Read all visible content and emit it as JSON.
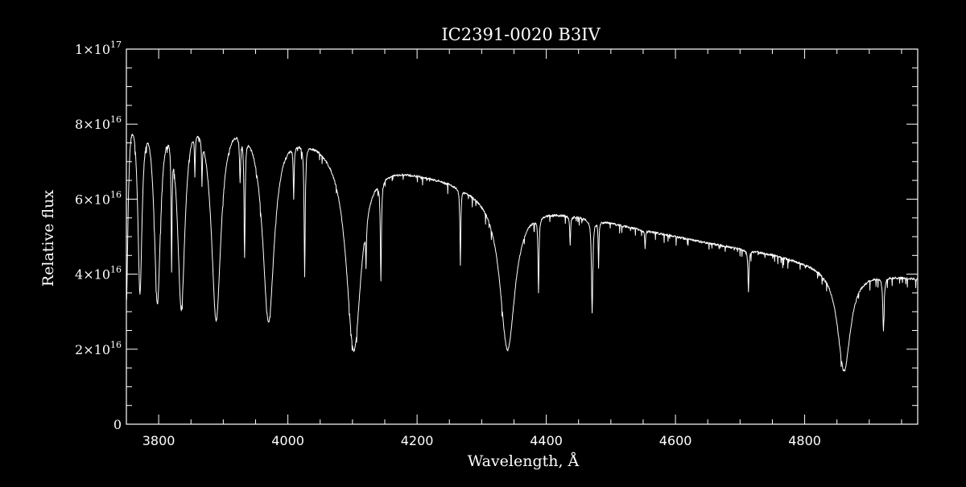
{
  "chart_data": {
    "type": "line",
    "title": "IC2391-0020   B3IV",
    "xlabel": "Wavelength, Å",
    "ylabel": "Relative flux",
    "xlim": [
      3750,
      4975
    ],
    "ylim": [
      0,
      1e+17
    ],
    "x_ticks": [
      3800,
      4000,
      4200,
      4400,
      4600,
      4800
    ],
    "x_tick_labels": [
      "3800",
      "4000",
      "4200",
      "4400",
      "4600",
      "4800"
    ],
    "y_ticks": [
      0,
      2e+16,
      4e+16,
      6e+16,
      8e+16,
      1e+17
    ],
    "y_tick_labels": [
      {
        "mantissa": "0",
        "exponent": ""
      },
      {
        "mantissa": "2×10",
        "exponent": "16"
      },
      {
        "mantissa": "4×10",
        "exponent": "16"
      },
      {
        "mantissa": "6×10",
        "exponent": "16"
      },
      {
        "mantissa": "8×10",
        "exponent": "16"
      },
      {
        "mantissa": "1×10",
        "exponent": "17"
      }
    ],
    "colors": {
      "background": "#000000",
      "foreground": "#ffffff"
    },
    "series": [
      {
        "continuum": [
          [
            3750,
            9e+16
          ],
          [
            3850,
            8.8e+16
          ],
          [
            3950,
            8.3e+16
          ],
          [
            4050,
            7.7e+16
          ],
          [
            4150,
            7e+16
          ],
          [
            4250,
            6.55e+16
          ],
          [
            4350,
            5.95e+16
          ],
          [
            4450,
            5.6e+16
          ],
          [
            4550,
            5.2e+16
          ],
          [
            4650,
            4.85e+16
          ],
          [
            4750,
            4.55e+16
          ],
          [
            4850,
            4.15e+16
          ],
          [
            4975,
            3.9e+16
          ]
        ],
        "lines": [
          {
            "center": 3750,
            "depth": 5.4e+16,
            "width": 3
          },
          {
            "center": 3771,
            "depth": 5e+16,
            "width": 4
          },
          {
            "center": 3798,
            "depth": 5.3e+16,
            "width": 6
          },
          {
            "center": 3820,
            "depth": 3.3e+16,
            "width": 0.8
          },
          {
            "center": 3835,
            "depth": 5.4e+16,
            "width": 7
          },
          {
            "center": 3856,
            "depth": 1.1e+16,
            "width": 0.7
          },
          {
            "center": 3867,
            "depth": 1.2e+16,
            "width": 0.7
          },
          {
            "center": 3889,
            "depth": 5.6e+16,
            "width": 9
          },
          {
            "center": 3926,
            "depth": 1.2e+16,
            "width": 1.0
          },
          {
            "center": 3933,
            "depth": 3.2e+16,
            "width": 1.0
          },
          {
            "center": 3970,
            "depth": 5.3e+16,
            "width": 11
          },
          {
            "center": 4009,
            "depth": 1.4e+16,
            "width": 0.8
          },
          {
            "center": 4026,
            "depth": 3.5e+16,
            "width": 1.0
          },
          {
            "center": 4102,
            "depth": 5.3e+16,
            "width": 14
          },
          {
            "center": 4121,
            "depth": 1e+16,
            "width": 0.8
          },
          {
            "center": 4144,
            "depth": 2.6e+16,
            "width": 1.0
          },
          {
            "center": 4267,
            "depth": 2e+16,
            "width": 0.8
          },
          {
            "center": 4340,
            "depth": 4e+16,
            "width": 14
          },
          {
            "center": 4388,
            "depth": 2e+16,
            "width": 0.9
          },
          {
            "center": 4437,
            "depth": 8000000000000000.0,
            "width": 0.8
          },
          {
            "center": 4471,
            "depth": 2.5e+16,
            "width": 1.2
          },
          {
            "center": 4481,
            "depth": 1.2e+16,
            "width": 0.7
          },
          {
            "center": 4553,
            "depth": 5000000000000000.0,
            "width": 0.7
          },
          {
            "center": 4713,
            "depth": 1.1e+16,
            "width": 0.9
          },
          {
            "center": 4861,
            "depth": 2.7e+16,
            "width": 12
          },
          {
            "center": 4922,
            "depth": 1.4e+16,
            "width": 1.2
          }
        ]
      }
    ]
  }
}
